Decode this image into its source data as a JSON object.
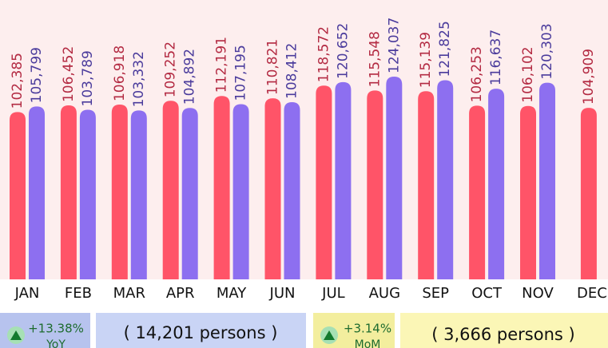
{
  "chart_data": {
    "type": "bar",
    "categories": [
      "JAN",
      "FEB",
      "MAR",
      "APR",
      "MAY",
      "JUN",
      "JUL",
      "AUG",
      "SEP",
      "OCT",
      "NOV",
      "DEC"
    ],
    "series": [
      {
        "color": "#ff5468",
        "label_color": "#b32a42",
        "values": [
          102385,
          106452,
          106918,
          109252,
          112191,
          110821,
          118572,
          115548,
          115139,
          106253,
          106102,
          104909
        ],
        "value_labels": [
          "102,385",
          "106,452",
          "106,918",
          "109,252",
          "112,191",
          "110,821",
          "118,572",
          "115,548",
          "115,139",
          "106,253",
          "106,102",
          "104,909"
        ]
      },
      {
        "color": "#8d6ff0",
        "label_color": "#4a3b9c",
        "values": [
          105799,
          103789,
          103332,
          104892,
          107195,
          108412,
          120652,
          124037,
          121825,
          116637,
          120303,
          null
        ],
        "value_labels": [
          "105,799",
          "103,789",
          "103,332",
          "104,892",
          "107,195",
          "108,412",
          "120,652",
          "124,037",
          "121,825",
          "116,637",
          "120,303",
          null
        ]
      }
    ]
  },
  "summary": [
    {
      "change": "+13.38%",
      "period": "YoY",
      "persons": "( 14,201 persons )"
    },
    {
      "change": "+3.14%",
      "period": "MoM",
      "persons": "( 3,666 persons )"
    }
  ]
}
